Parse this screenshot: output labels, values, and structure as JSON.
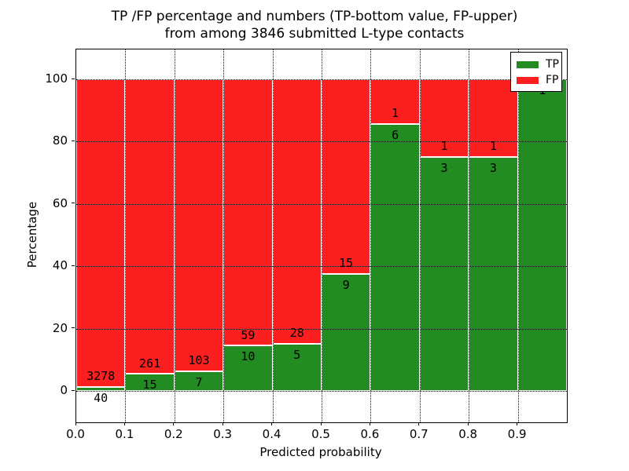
{
  "figure": {
    "title_line1": "TP /FP percentage and numbers (TP-bottom value, FP-upper)",
    "title_line2": "from among 3846 submitted L-type contacts",
    "xlabel": "Predicted probability",
    "ylabel": "Percentage"
  },
  "legend": {
    "position": "upper right",
    "items": [
      {
        "label": "TP",
        "color": "#228B22"
      },
      {
        "label": "FP",
        "color": "#FC1F1F"
      }
    ]
  },
  "chart_data": {
    "type": "bar",
    "stacked": true,
    "normalized_to_percent": true,
    "title": "TP /FP percentage and numbers (TP-bottom value, FP-upper) from among 3846 submitted L-type contacts",
    "xlabel": "Predicted probability",
    "ylabel": "Percentage",
    "total_contacts": 3846,
    "bin_width": 0.1,
    "bins": [
      {
        "x_start": 0.0,
        "x_end": 0.1,
        "tp": 40,
        "fp": 3278,
        "tp_pct": 1.21
      },
      {
        "x_start": 0.1,
        "x_end": 0.2,
        "tp": 15,
        "fp": 261,
        "tp_pct": 5.43
      },
      {
        "x_start": 0.2,
        "x_end": 0.3,
        "tp": 7,
        "fp": 103,
        "tp_pct": 6.36
      },
      {
        "x_start": 0.3,
        "x_end": 0.4,
        "tp": 10,
        "fp": 59,
        "tp_pct": 14.49
      },
      {
        "x_start": 0.4,
        "x_end": 0.5,
        "tp": 5,
        "fp": 28,
        "tp_pct": 15.15
      },
      {
        "x_start": 0.5,
        "x_end": 0.6,
        "tp": 9,
        "fp": 15,
        "tp_pct": 37.5
      },
      {
        "x_start": 0.6,
        "x_end": 0.7,
        "tp": 6,
        "fp": 1,
        "tp_pct": 85.71
      },
      {
        "x_start": 0.7,
        "x_end": 0.8,
        "tp": 3,
        "fp": 1,
        "tp_pct": 75.0
      },
      {
        "x_start": 0.8,
        "x_end": 0.9,
        "tp": 3,
        "fp": 1,
        "tp_pct": 75.0
      },
      {
        "x_start": 0.9,
        "x_end": 1.0,
        "tp": 1,
        "fp": 0,
        "tp_pct": 100.0
      }
    ],
    "x_ticks": [
      "0.0",
      "0.1",
      "0.2",
      "0.3",
      "0.4",
      "0.5",
      "0.6",
      "0.7",
      "0.8",
      "0.9"
    ],
    "y_ticks": [
      0,
      20,
      40,
      60,
      80,
      100
    ],
    "xlim": [
      0.0,
      1.0
    ],
    "ylim": [
      -10,
      110
    ],
    "grid": true,
    "grid_style": "dotted",
    "legend_position": "upper right",
    "colors": {
      "tp": "#228B22",
      "fp": "#FC1F1F",
      "grid": "#111111",
      "edge": "#ffffff"
    }
  }
}
